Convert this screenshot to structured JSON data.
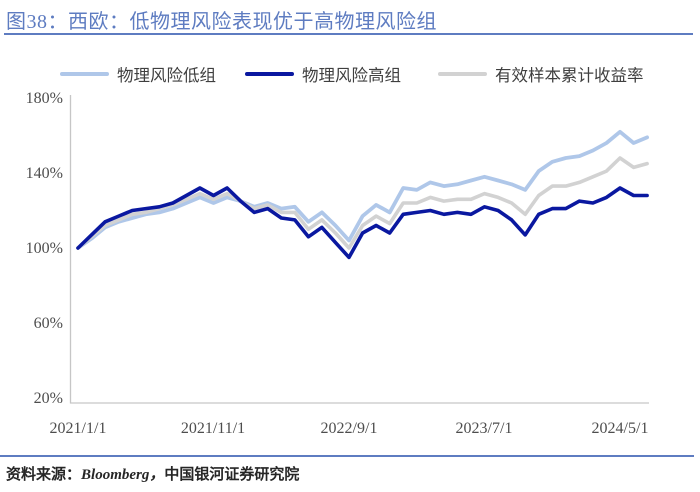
{
  "chart_data": {
    "type": "line",
    "title": "图38：西欧：低物理风险表现优于高物理风险组",
    "legend_position": "top",
    "grid": false,
    "accent_color": "#5E7CC1",
    "axis_color": "#C6C6C6",
    "ylim": [
      20,
      180
    ],
    "y_tick_labels": [
      "180%",
      "140%",
      "100%",
      "60%",
      "20%"
    ],
    "x_tick_labels": [
      "2021/1/1",
      "2021/11/1",
      "2022/9/1",
      "2023/7/1",
      "2024/5/1"
    ],
    "x_tick_indices": [
      0,
      10,
      20,
      30,
      40
    ],
    "categories": [
      "2021/1",
      "2021/2",
      "2021/3",
      "2021/4",
      "2021/5",
      "2021/6",
      "2021/7",
      "2021/8",
      "2021/9",
      "2021/10",
      "2021/11",
      "2021/12",
      "2022/1",
      "2022/2",
      "2022/3",
      "2022/4",
      "2022/5",
      "2022/6",
      "2022/7",
      "2022/8",
      "2022/9",
      "2022/10",
      "2022/11",
      "2022/12",
      "2023/1",
      "2023/2",
      "2023/3",
      "2023/4",
      "2023/5",
      "2023/6",
      "2023/7",
      "2023/8",
      "2023/9",
      "2023/10",
      "2023/11",
      "2023/12",
      "2024/1",
      "2024/2",
      "2024/3",
      "2024/4",
      "2024/5",
      "2024/6",
      "2024/7"
    ],
    "series": [
      {
        "name": "物理风险低组",
        "color": "#AFC7E9",
        "values": [
          100,
          105,
          111,
          114,
          116,
          118,
          119,
          121,
          124,
          127,
          124,
          127,
          125,
          122,
          124,
          121,
          122,
          114,
          119,
          112,
          104,
          117,
          123,
          119,
          132,
          131,
          135,
          133,
          134,
          136,
          138,
          136,
          134,
          131,
          141,
          146,
          148,
          149,
          152,
          156,
          162,
          156,
          159
        ]
      },
      {
        "name": "物理风险高组",
        "color": "#0A18A0",
        "values": [
          100,
          107,
          114,
          117,
          120,
          121,
          122,
          124,
          128,
          132,
          128,
          132,
          125,
          119,
          121,
          116,
          115,
          106,
          111,
          103,
          95,
          108,
          112,
          108,
          118,
          119,
          120,
          118,
          119,
          118,
          122,
          120,
          115,
          107,
          118,
          121,
          121,
          125,
          124,
          127,
          132,
          128,
          128
        ]
      },
      {
        "name": "有效样本累计收益率",
        "color": "#D2D2D2",
        "values": [
          100,
          106,
          112,
          115,
          118,
          119,
          121,
          123,
          126,
          129,
          126,
          129,
          125,
          121,
          123,
          119,
          119,
          110,
          115,
          108,
          100,
          112,
          117,
          113,
          124,
          124,
          127,
          125,
          126,
          126,
          129,
          127,
          124,
          118,
          128,
          133,
          133,
          135,
          138,
          141,
          148,
          143,
          145
        ]
      }
    ]
  },
  "source": {
    "prefix": "资料来源：",
    "agency": "Bloomberg，",
    "publisher": "中国银河证券研究院"
  }
}
